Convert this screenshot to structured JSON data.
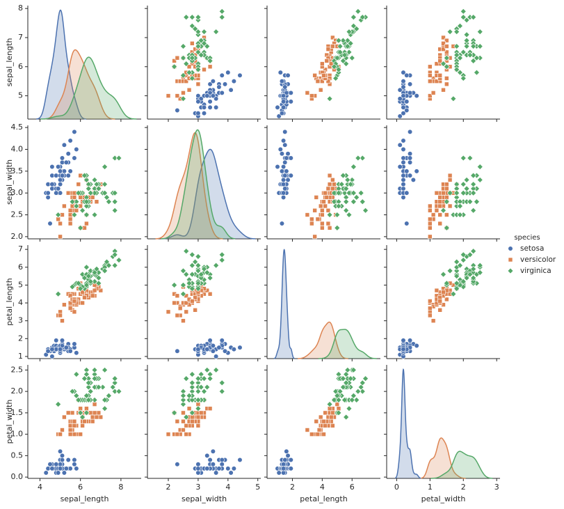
{
  "chart_data": {
    "type": "pairplot",
    "variables": [
      "sepal_length",
      "sepal_width",
      "petal_length",
      "petal_width"
    ],
    "xlims": [
      [
        3.4,
        9.0
      ],
      [
        1.3,
        5.1
      ],
      [
        0.3,
        7.9
      ],
      [
        -0.3,
        3.1
      ]
    ],
    "ylims": [
      [
        4.2,
        8.1
      ],
      [
        1.95,
        4.55
      ],
      [
        0.88,
        7.24
      ],
      [
        -0.03,
        2.62
      ]
    ],
    "xticks": [
      [
        4,
        6,
        8
      ],
      [
        2,
        3,
        4,
        5
      ],
      [
        2,
        4,
        6
      ],
      [
        0,
        1,
        2,
        3
      ]
    ],
    "yticks": [
      [
        5,
        6,
        7,
        8
      ],
      [
        {
          "value": 2.0,
          "label": "2.0"
        },
        {
          "value": 2.5,
          "label": "2.5"
        },
        {
          "value": 3.0,
          "label": "3.0"
        },
        {
          "value": 3.5,
          "label": "3.5"
        },
        {
          "value": 4.0,
          "label": "4.0"
        },
        {
          "value": 4.5,
          "label": "4.5"
        }
      ],
      [
        1,
        2,
        3,
        4,
        5,
        6,
        7
      ],
      [
        {
          "value": 0.0,
          "label": "0.0"
        },
        {
          "value": 0.5,
          "label": "0.5"
        },
        {
          "value": 1.0,
          "label": "1.0"
        },
        {
          "value": 1.5,
          "label": "1.5"
        },
        {
          "value": 2.0,
          "label": "2.0"
        },
        {
          "value": 2.5,
          "label": "2.5"
        }
      ]
    ],
    "legend_title": "species",
    "legend_position": "right",
    "series": [
      {
        "name": "setosa",
        "color": "#4c72b0",
        "marker": "circle",
        "values": [
          [
            5.1,
            3.5,
            1.4,
            0.2
          ],
          [
            4.9,
            3.0,
            1.4,
            0.2
          ],
          [
            4.7,
            3.2,
            1.3,
            0.2
          ],
          [
            4.6,
            3.1,
            1.5,
            0.2
          ],
          [
            5.0,
            3.6,
            1.4,
            0.2
          ],
          [
            5.4,
            3.9,
            1.7,
            0.4
          ],
          [
            4.6,
            3.4,
            1.4,
            0.3
          ],
          [
            5.0,
            3.4,
            1.5,
            0.2
          ],
          [
            4.4,
            2.9,
            1.4,
            0.2
          ],
          [
            4.9,
            3.1,
            1.5,
            0.1
          ],
          [
            5.4,
            3.7,
            1.5,
            0.2
          ],
          [
            4.8,
            3.4,
            1.6,
            0.2
          ],
          [
            4.8,
            3.0,
            1.4,
            0.1
          ],
          [
            4.3,
            3.0,
            1.1,
            0.1
          ],
          [
            5.8,
            4.0,
            1.2,
            0.2
          ],
          [
            5.7,
            4.4,
            1.5,
            0.4
          ],
          [
            5.4,
            3.9,
            1.3,
            0.4
          ],
          [
            5.1,
            3.5,
            1.4,
            0.3
          ],
          [
            5.7,
            3.8,
            1.7,
            0.3
          ],
          [
            5.1,
            3.8,
            1.5,
            0.3
          ],
          [
            5.4,
            3.4,
            1.7,
            0.2
          ],
          [
            5.1,
            3.7,
            1.5,
            0.4
          ],
          [
            4.6,
            3.6,
            1.0,
            0.2
          ],
          [
            5.1,
            3.3,
            1.7,
            0.5
          ],
          [
            4.8,
            3.4,
            1.9,
            0.2
          ],
          [
            5.0,
            3.0,
            1.6,
            0.2
          ],
          [
            5.0,
            3.4,
            1.6,
            0.4
          ],
          [
            5.2,
            3.5,
            1.5,
            0.2
          ],
          [
            5.2,
            3.4,
            1.4,
            0.2
          ],
          [
            4.7,
            3.2,
            1.6,
            0.2
          ],
          [
            4.8,
            3.1,
            1.6,
            0.2
          ],
          [
            5.4,
            3.4,
            1.5,
            0.4
          ],
          [
            5.2,
            4.1,
            1.5,
            0.1
          ],
          [
            5.5,
            4.2,
            1.4,
            0.2
          ],
          [
            4.9,
            3.1,
            1.5,
            0.2
          ],
          [
            5.0,
            3.2,
            1.2,
            0.2
          ],
          [
            5.5,
            3.5,
            1.3,
            0.2
          ],
          [
            4.9,
            3.6,
            1.4,
            0.1
          ],
          [
            4.4,
            3.0,
            1.3,
            0.2
          ],
          [
            5.1,
            3.4,
            1.5,
            0.2
          ],
          [
            5.0,
            3.5,
            1.3,
            0.3
          ],
          [
            4.5,
            2.3,
            1.3,
            0.3
          ],
          [
            4.4,
            3.2,
            1.3,
            0.2
          ],
          [
            5.0,
            3.5,
            1.6,
            0.6
          ],
          [
            5.1,
            3.8,
            1.9,
            0.4
          ],
          [
            4.8,
            3.0,
            1.4,
            0.3
          ],
          [
            5.1,
            3.8,
            1.6,
            0.2
          ],
          [
            4.6,
            3.2,
            1.4,
            0.2
          ],
          [
            5.3,
            3.7,
            1.5,
            0.2
          ],
          [
            5.0,
            3.3,
            1.4,
            0.2
          ]
        ]
      },
      {
        "name": "versicolor",
        "color": "#dd8452",
        "marker": "square",
        "values": [
          [
            7.0,
            3.2,
            4.7,
            1.4
          ],
          [
            6.4,
            3.2,
            4.5,
            1.5
          ],
          [
            6.9,
            3.1,
            4.9,
            1.5
          ],
          [
            5.5,
            2.3,
            4.0,
            1.3
          ],
          [
            6.5,
            2.8,
            4.6,
            1.5
          ],
          [
            5.7,
            2.8,
            4.5,
            1.3
          ],
          [
            6.3,
            3.3,
            4.7,
            1.6
          ],
          [
            4.9,
            2.4,
            3.3,
            1.0
          ],
          [
            6.6,
            2.9,
            4.6,
            1.3
          ],
          [
            5.2,
            2.7,
            3.9,
            1.4
          ],
          [
            5.0,
            2.0,
            3.5,
            1.0
          ],
          [
            5.9,
            3.0,
            4.2,
            1.5
          ],
          [
            6.0,
            2.2,
            4.0,
            1.0
          ],
          [
            6.1,
            2.9,
            4.7,
            1.4
          ],
          [
            5.6,
            2.9,
            3.6,
            1.3
          ],
          [
            6.7,
            3.1,
            4.4,
            1.4
          ],
          [
            5.6,
            3.0,
            4.5,
            1.5
          ],
          [
            5.8,
            2.7,
            4.1,
            1.0
          ],
          [
            6.2,
            2.2,
            4.5,
            1.5
          ],
          [
            5.6,
            2.5,
            3.9,
            1.1
          ],
          [
            5.9,
            3.2,
            4.8,
            1.8
          ],
          [
            6.1,
            2.8,
            4.0,
            1.3
          ],
          [
            6.3,
            2.5,
            4.9,
            1.5
          ],
          [
            6.1,
            2.8,
            4.7,
            1.2
          ],
          [
            6.4,
            2.9,
            4.3,
            1.3
          ],
          [
            6.6,
            3.0,
            4.4,
            1.4
          ],
          [
            6.8,
            2.8,
            4.8,
            1.4
          ],
          [
            6.7,
            3.0,
            5.0,
            1.7
          ],
          [
            6.0,
            2.9,
            4.5,
            1.5
          ],
          [
            5.7,
            2.6,
            3.5,
            1.0
          ],
          [
            5.5,
            2.4,
            3.8,
            1.1
          ],
          [
            5.5,
            2.4,
            3.7,
            1.0
          ],
          [
            5.8,
            2.7,
            3.9,
            1.2
          ],
          [
            6.0,
            2.7,
            5.1,
            1.6
          ],
          [
            5.4,
            3.0,
            4.5,
            1.5
          ],
          [
            6.0,
            3.4,
            4.5,
            1.6
          ],
          [
            6.7,
            3.1,
            4.7,
            1.5
          ],
          [
            6.3,
            2.3,
            4.4,
            1.3
          ],
          [
            5.6,
            3.0,
            4.1,
            1.3
          ],
          [
            5.5,
            2.5,
            4.0,
            1.3
          ],
          [
            5.5,
            2.6,
            4.4,
            1.2
          ],
          [
            6.1,
            3.0,
            4.6,
            1.4
          ],
          [
            5.8,
            2.6,
            4.0,
            1.2
          ],
          [
            5.0,
            2.3,
            3.3,
            1.0
          ],
          [
            5.6,
            2.7,
            4.2,
            1.3
          ],
          [
            5.7,
            3.0,
            4.2,
            1.2
          ],
          [
            5.7,
            2.9,
            4.2,
            1.3
          ],
          [
            6.2,
            2.9,
            4.3,
            1.3
          ],
          [
            5.1,
            2.5,
            3.0,
            1.1
          ],
          [
            5.7,
            2.8,
            4.1,
            1.3
          ]
        ]
      },
      {
        "name": "virginica",
        "color": "#55a868",
        "marker": "diamond",
        "values": [
          [
            6.3,
            3.3,
            6.0,
            2.5
          ],
          [
            5.8,
            2.7,
            5.1,
            1.9
          ],
          [
            7.1,
            3.0,
            5.9,
            2.1
          ],
          [
            6.3,
            2.9,
            5.6,
            1.8
          ],
          [
            6.5,
            3.0,
            5.8,
            2.2
          ],
          [
            7.6,
            3.0,
            6.6,
            2.1
          ],
          [
            4.9,
            2.5,
            4.5,
            1.7
          ],
          [
            7.3,
            2.9,
            6.3,
            1.8
          ],
          [
            6.7,
            2.5,
            5.8,
            1.8
          ],
          [
            7.2,
            3.6,
            6.1,
            2.5
          ],
          [
            6.5,
            3.2,
            5.1,
            2.0
          ],
          [
            6.4,
            2.7,
            5.3,
            1.9
          ],
          [
            6.8,
            3.0,
            5.5,
            2.1
          ],
          [
            5.7,
            2.5,
            5.0,
            2.0
          ],
          [
            5.8,
            2.8,
            5.1,
            2.4
          ],
          [
            6.4,
            3.2,
            5.3,
            2.3
          ],
          [
            6.5,
            3.0,
            5.5,
            1.8
          ],
          [
            7.7,
            3.8,
            6.7,
            2.2
          ],
          [
            7.7,
            2.6,
            6.9,
            2.3
          ],
          [
            6.0,
            2.2,
            5.0,
            1.5
          ],
          [
            6.9,
            3.2,
            5.7,
            2.3
          ],
          [
            5.6,
            2.8,
            4.9,
            2.0
          ],
          [
            7.7,
            2.8,
            6.7,
            2.0
          ],
          [
            6.3,
            2.7,
            4.9,
            1.8
          ],
          [
            6.7,
            3.3,
            5.7,
            2.1
          ],
          [
            7.2,
            3.2,
            6.0,
            1.8
          ],
          [
            6.2,
            2.8,
            4.8,
            1.8
          ],
          [
            6.1,
            3.0,
            4.9,
            1.8
          ],
          [
            6.4,
            2.8,
            5.6,
            2.1
          ],
          [
            7.2,
            3.0,
            5.8,
            1.6
          ],
          [
            7.4,
            2.8,
            6.1,
            1.9
          ],
          [
            7.9,
            3.8,
            6.4,
            2.0
          ],
          [
            6.4,
            2.8,
            5.6,
            2.2
          ],
          [
            6.3,
            2.8,
            5.1,
            1.5
          ],
          [
            6.1,
            2.6,
            5.6,
            1.4
          ],
          [
            7.7,
            3.0,
            6.1,
            2.3
          ],
          [
            6.3,
            3.4,
            5.6,
            2.4
          ],
          [
            6.4,
            3.1,
            5.5,
            1.8
          ],
          [
            6.0,
            3.0,
            4.8,
            1.8
          ],
          [
            6.9,
            3.1,
            5.4,
            2.1
          ],
          [
            6.7,
            3.1,
            5.6,
            2.4
          ],
          [
            6.9,
            3.1,
            5.1,
            2.3
          ],
          [
            5.8,
            2.7,
            5.1,
            1.9
          ],
          [
            6.8,
            3.2,
            5.9,
            2.3
          ],
          [
            6.7,
            3.3,
            5.7,
            2.5
          ],
          [
            6.7,
            3.0,
            5.2,
            2.3
          ],
          [
            6.3,
            2.5,
            5.0,
            1.9
          ],
          [
            6.5,
            3.0,
            5.2,
            2.0
          ],
          [
            6.2,
            3.4,
            5.4,
            2.3
          ],
          [
            5.9,
            3.0,
            5.1,
            1.8
          ]
        ]
      }
    ]
  }
}
